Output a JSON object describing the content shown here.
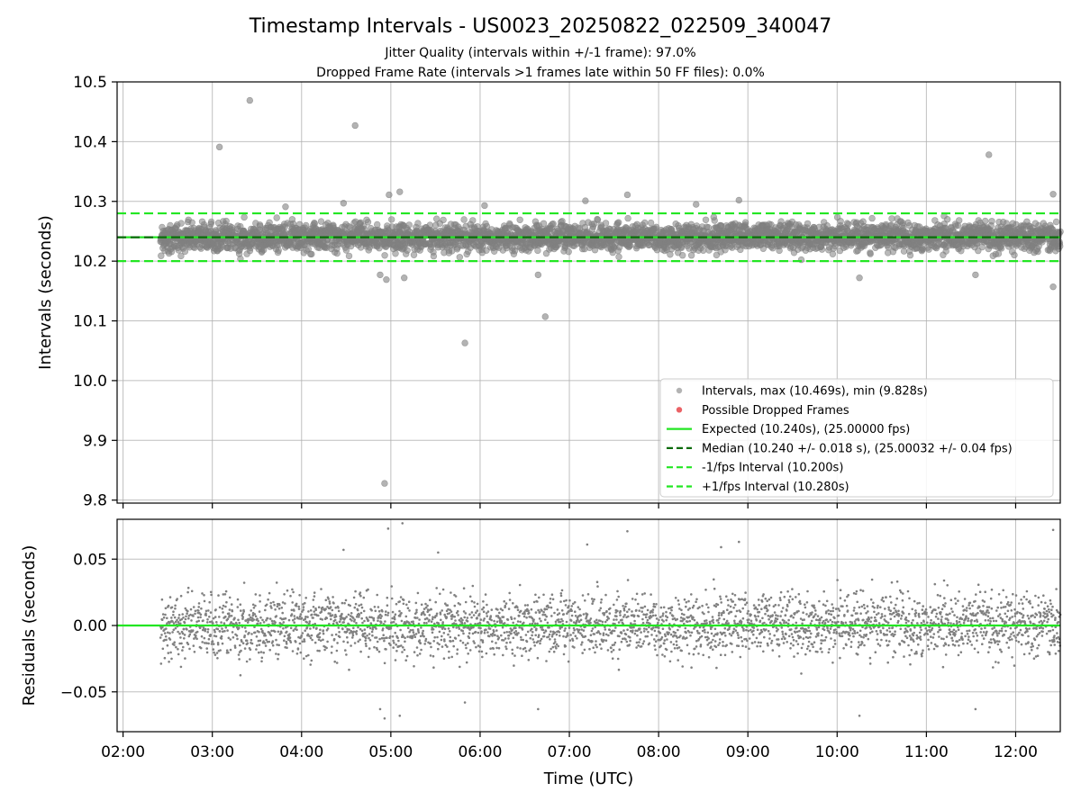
{
  "figure": {
    "title": "Timestamp Intervals - US0023_20250822_022509_340047",
    "subtitle_1": "Jitter Quality (intervals within +/-1 frame): 97.0%",
    "subtitle_2": "Dropped Frame Rate (intervals >1 frames late within 50 FF files): 0.0%"
  },
  "colors": {
    "points": "#808080",
    "dropped": "#e8474b",
    "expected": "#22e622",
    "median": "#0a6b0a",
    "interval": "#22e622"
  },
  "chart_data": [
    {
      "type": "scatter",
      "ylabel": "Intervals (seconds)",
      "xlabel": "",
      "xlim": [
        1.9333,
        12.5
      ],
      "ylim": [
        9.795,
        10.5
      ],
      "yticks": [
        "9.8",
        "9.9",
        "10.0",
        "10.1",
        "10.2",
        "10.3",
        "10.4",
        "10.5"
      ],
      "grid": true,
      "legend_position": "lower-right",
      "series": [
        {
          "name": "Intervals, max (10.469s), min (9.828s)",
          "x_range_hours_utc": [
            2.42,
            12.5
          ],
          "band_center": 10.24,
          "band_halfwidth": 0.04,
          "outliers": [
            [
              3.08,
              10.391
            ],
            [
              3.42,
              10.469
            ],
            [
              4.6,
              10.427
            ],
            [
              11.7,
              10.378
            ],
            [
              4.93,
              9.828
            ],
            [
              5.83,
              10.063
            ],
            [
              6.73,
              10.107
            ],
            [
              12.42,
              10.157
            ],
            [
              10.25,
              10.172
            ],
            [
              4.95,
              10.169
            ],
            [
              4.88,
              10.177
            ],
            [
              5.15,
              10.172
            ],
            [
              6.65,
              10.177
            ],
            [
              11.55,
              10.177
            ],
            [
              5.1,
              10.316
            ],
            [
              4.98,
              10.311
            ],
            [
              7.65,
              10.311
            ],
            [
              12.42,
              10.312
            ],
            [
              8.9,
              10.302
            ],
            [
              7.18,
              10.301
            ],
            [
              4.47,
              10.297
            ],
            [
              8.42,
              10.295
            ],
            [
              3.82,
              10.291
            ],
            [
              6.05,
              10.293
            ]
          ]
        },
        {
          "name": "Possible Dropped Frames",
          "points": []
        },
        {
          "name": "Expected (10.240s), (25.00000 fps)",
          "y": 10.24
        },
        {
          "name": "Median (10.240 +/- 0.018 s), (25.00032 +/- 0.04 fps)",
          "y": 10.24
        },
        {
          "name": "-1/fps Interval (10.200s)",
          "y": 10.2
        },
        {
          "name": "+1/fps Interval (10.280s)",
          "y": 10.28
        }
      ]
    },
    {
      "type": "scatter",
      "ylabel": "Residuals (seconds)",
      "xlabel": "Time (UTC)",
      "xlim": [
        1.9333,
        12.5
      ],
      "ylim": [
        -0.08,
        0.08
      ],
      "yticks": [
        "−0.05",
        "0.00",
        "0.05"
      ],
      "xticks": [
        "02:00",
        "03:00",
        "04:00",
        "05:00",
        "06:00",
        "07:00",
        "08:00",
        "09:00",
        "10:00",
        "11:00",
        "12:00"
      ],
      "grid": true,
      "series": [
        {
          "name": "Residuals",
          "x_range_hours_utc": [
            2.42,
            12.5
          ],
          "band_halfwidth": 0.04,
          "zero_line": 0.0,
          "outliers": [
            [
              4.97,
              0.073
            ],
            [
              5.13,
              0.077
            ],
            [
              7.65,
              0.071
            ],
            [
              12.42,
              0.072
            ],
            [
              4.93,
              -0.07
            ],
            [
              4.88,
              -0.063
            ],
            [
              5.1,
              -0.068
            ],
            [
              10.25,
              -0.068
            ],
            [
              11.55,
              -0.063
            ],
            [
              5.83,
              -0.058
            ],
            [
              6.65,
              -0.063
            ],
            [
              8.9,
              0.063
            ],
            [
              8.7,
              0.059
            ],
            [
              7.2,
              0.061
            ],
            [
              4.47,
              0.057
            ],
            [
              5.53,
              0.055
            ]
          ]
        }
      ]
    }
  ]
}
